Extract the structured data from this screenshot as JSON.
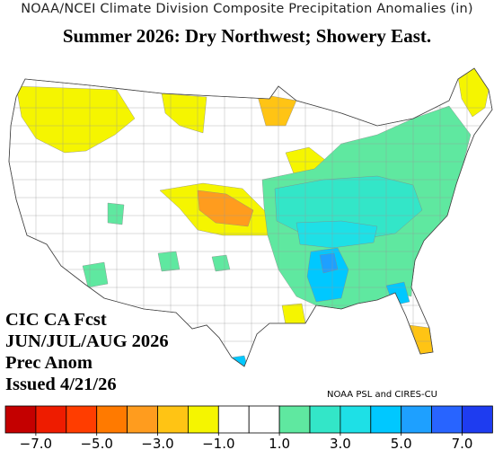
{
  "header": {
    "title": "NOAA/NCEI Climate Division Composite Precipitation Anomalies (in)",
    "headline": "Summer 2026: Dry Northwest; Showery East."
  },
  "forecast_info": {
    "line1": "CIC CA Fcst",
    "line2": "JUN/JUL/AUG 2026",
    "line3": "Prec Anom",
    "line4": "Issued 4/21/26"
  },
  "credit": "NOAA PSL and CIRES-CU",
  "colorbar": {
    "colors": [
      "#c40000",
      "#ee1c00",
      "#ff3d00",
      "#ff7a00",
      "#ff9c1e",
      "#ffc414",
      "#f5f500",
      "#ffffff",
      "#ffffff",
      "#5fe8a0",
      "#33e6c8",
      "#1ee0e6",
      "#00c8ff",
      "#1ea0ff",
      "#2864ff",
      "#1e3cf0"
    ],
    "tick_labels": [
      "−7.0",
      "−5.0",
      "−3.0",
      "−1.0",
      "1.0",
      "3.0",
      "5.0",
      "7.0"
    ]
  },
  "map_legend": {
    "colors": {
      "dry_light": "#f5f500",
      "dry_moderate": "#ffc414",
      "dry_strong": "#ff9c1e",
      "wet_light": "#5fe8a0",
      "wet_moderate": "#33e6c8",
      "wet_strong": "#00c8ff",
      "wet_heavy": "#1ea0ff",
      "near_normal": "#ffffff"
    }
  }
}
